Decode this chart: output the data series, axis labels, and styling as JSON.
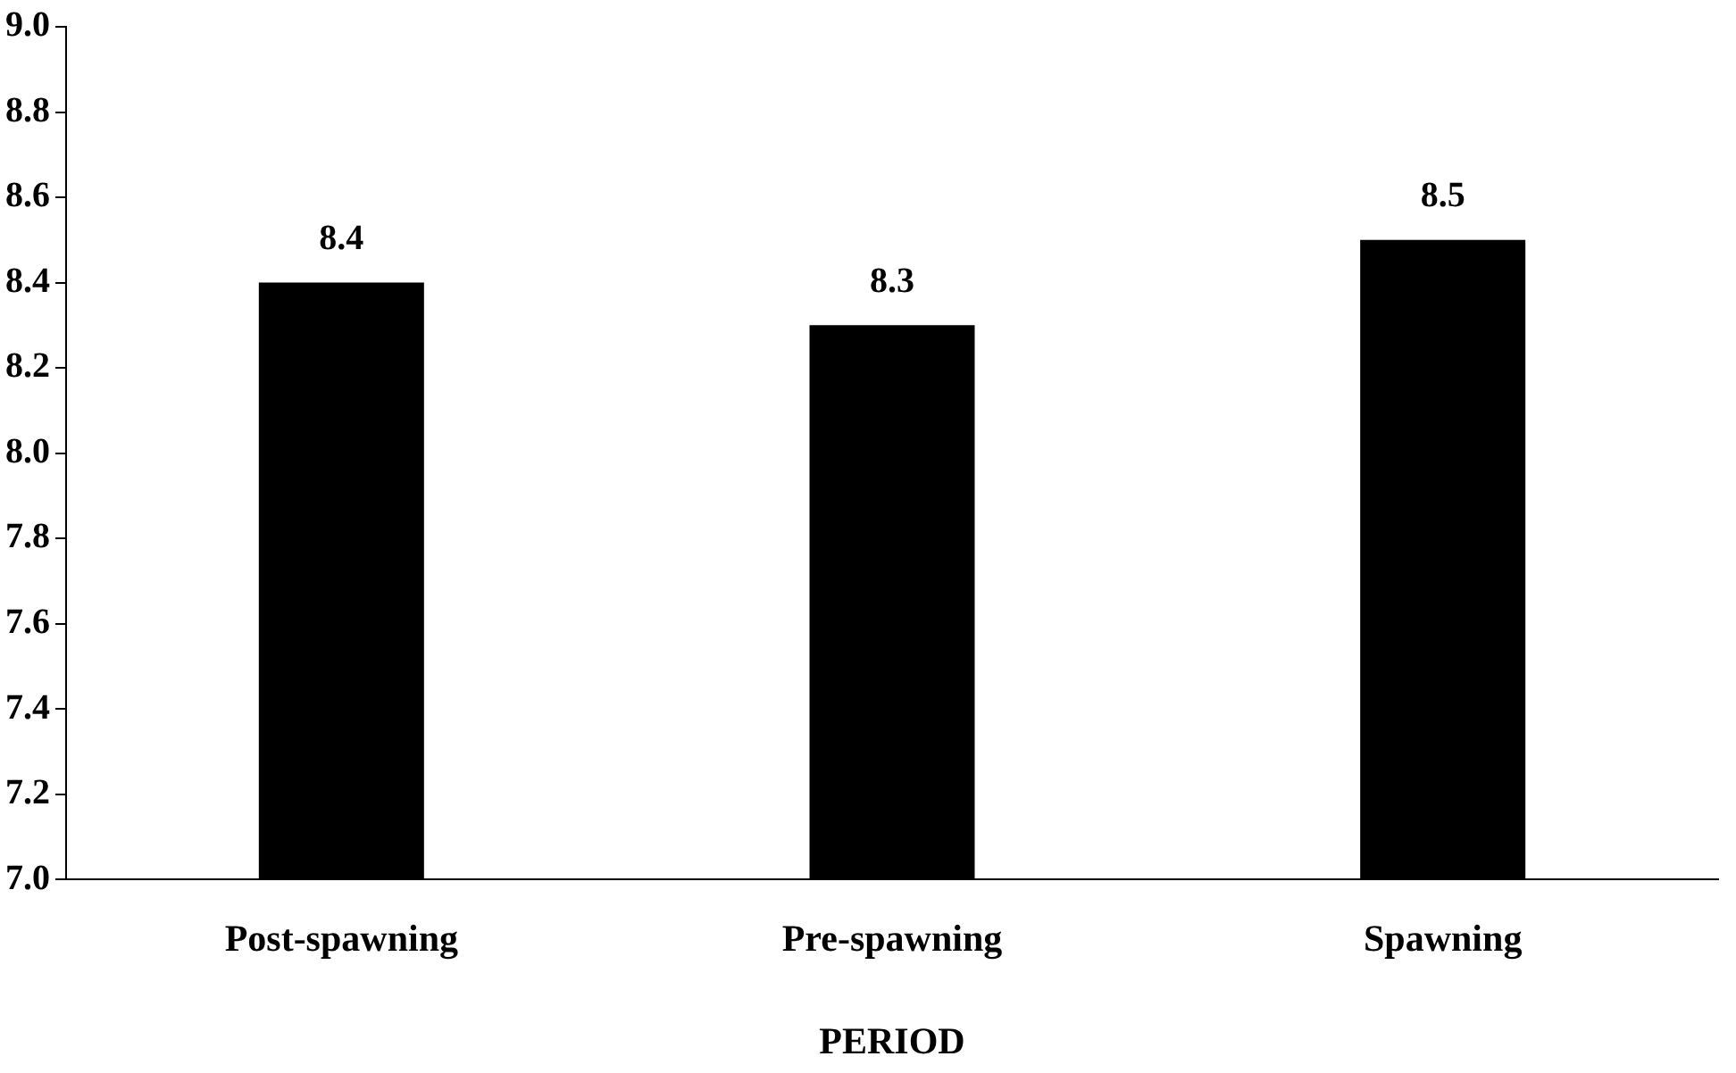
{
  "chart_data": {
    "type": "bar",
    "xlabel": "PERIOD",
    "categories": [
      "Post-spawning",
      "Pre-spawning",
      "Spawning"
    ],
    "values": [
      8.4,
      8.3,
      8.5
    ],
    "color": "#000000",
    "ylim": [
      7.0,
      9.0
    ],
    "yticks": [
      {
        "value": 7.0,
        "label": "7.0"
      },
      {
        "value": 7.2,
        "label": "7.2"
      },
      {
        "value": 7.4,
        "label": "7.4"
      },
      {
        "value": 7.6,
        "label": "7.6"
      },
      {
        "value": 7.8,
        "label": "7.8"
      },
      {
        "value": 8.0,
        "label": "8.0"
      },
      {
        "value": 8.2,
        "label": "8.2"
      },
      {
        "value": 8.4,
        "label": "8.4"
      },
      {
        "value": 8.6,
        "label": "8.6"
      },
      {
        "value": 8.8,
        "label": "8.8"
      },
      {
        "value": 9.0,
        "label": "9.0"
      }
    ],
    "grid": false,
    "legend": false,
    "data_labels": true
  }
}
